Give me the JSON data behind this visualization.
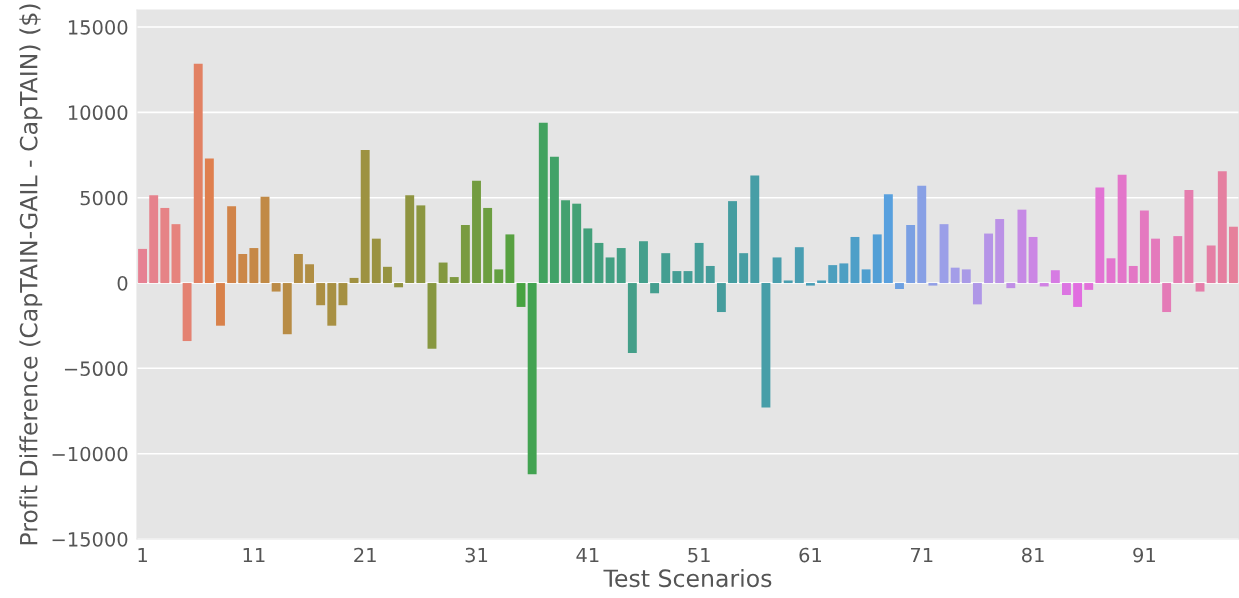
{
  "chart_data": {
    "type": "bar",
    "xlabel": "Test Scenarios",
    "ylabel": "Profit Difference (CapTAIN-GAIL - CapTAIN) ($)",
    "categories": [
      "1",
      null,
      null,
      null,
      null,
      null,
      null,
      null,
      null,
      null,
      "11",
      null,
      null,
      null,
      null,
      null,
      null,
      null,
      null,
      null,
      "21",
      null,
      null,
      null,
      null,
      null,
      null,
      null,
      null,
      null,
      "31",
      null,
      null,
      null,
      null,
      null,
      null,
      null,
      null,
      null,
      "41",
      null,
      null,
      null,
      null,
      null,
      null,
      null,
      null,
      null,
      "51",
      null,
      null,
      null,
      null,
      null,
      null,
      null,
      null,
      null,
      "61",
      null,
      null,
      null,
      null,
      null,
      null,
      null,
      null,
      null,
      "71",
      null,
      null,
      null,
      null,
      null,
      null,
      null,
      null,
      null,
      "81",
      null,
      null,
      null,
      null,
      null,
      null,
      null,
      null,
      null,
      "91",
      null,
      null,
      null,
      null,
      null,
      null,
      null,
      null
    ],
    "values": [
      2000,
      5150,
      4400,
      3450,
      -3400,
      12850,
      7300,
      -2500,
      4500,
      1700,
      2050,
      5050,
      -500,
      -3000,
      1700,
      1100,
      -1300,
      -2500,
      -1300,
      300,
      7800,
      2600,
      950,
      -250,
      5150,
      4550,
      -3850,
      1200,
      350,
      3400,
      6000,
      4400,
      800,
      2850,
      -1400,
      -11200,
      9400,
      7400,
      4850,
      4650,
      3200,
      2350,
      1500,
      2050,
      -4100,
      2450,
      -600,
      1750,
      700,
      700,
      2350,
      1000,
      -1700,
      4800,
      1750,
      6300,
      -7300,
      1500,
      150,
      2100,
      -150,
      150,
      1050,
      1150,
      2700,
      800,
      2850,
      5200,
      -350,
      3400,
      5700,
      -150,
      3450,
      900,
      800,
      -1250,
      2900,
      3750,
      -300,
      4300,
      2700,
      -200,
      750,
      -700,
      -1400,
      -400,
      5600,
      1450,
      6350,
      1000,
      4250,
      2600,
      -1700,
      2750,
      5450,
      -500,
      2200,
      6550,
      3300
    ],
    "colors": [
      "#e68193",
      "#e6828d",
      "#e68386",
      "#e6837d",
      "#e48272",
      "#e28163",
      "#df7f4e",
      "#d8814a",
      "#d18449",
      "#cb8748",
      "#c68847",
      "#c18a46",
      "#bc8b46",
      "#b88c45",
      "#b48d44",
      "#b08e44",
      "#ac8f43",
      "#a89043",
      "#a59042",
      "#a19141",
      "#9d9241",
      "#9a9240",
      "#969340",
      "#92933f",
      "#8f9440",
      "#8b9640",
      "#879740",
      "#839840",
      "#7e9940",
      "#799b40",
      "#739c40",
      "#6c9e41",
      "#639f41",
      "#58a141",
      "#47a341",
      "#42a351",
      "#42a25f",
      "#42a268",
      "#43a16f",
      "#43a175",
      "#43a07a",
      "#43a07e",
      "#43a082",
      "#44a086",
      "#449f89",
      "#449f8c",
      "#449f8f",
      "#449e91",
      "#449e94",
      "#449e96",
      "#459e99",
      "#459d9b",
      "#459d9d",
      "#459da0",
      "#469ea3",
      "#479ea6",
      "#479ea8",
      "#489eac",
      "#499eaf",
      "#499eb2",
      "#4a9eb6",
      "#4b9fba",
      "#4c9fbe",
      "#4d9fc3",
      "#4e9fc8",
      "#509fcf",
      "#529fd6",
      "#58a0de",
      "#6ca0e1",
      "#7ba0e3",
      "#88a0e5",
      "#929fe6",
      "#9b9fe8",
      "#a39de8",
      "#a99ae7",
      "#af97e7",
      "#b594e7",
      "#bb91e6",
      "#c08ee6",
      "#c68ae5",
      "#cb86e4",
      "#d181e4",
      "#d67be3",
      "#dc75e2",
      "#e16ee0",
      "#e271da",
      "#e273d4",
      "#e374cf",
      "#e376ca",
      "#e377c5",
      "#e479c0",
      "#e47abc",
      "#e47bb7",
      "#e57cb3",
      "#e57dae",
      "#e57eaa",
      "#e57fa5",
      "#e57fa0",
      "#e6809b"
    ],
    "ylim": [
      -15000,
      16000
    ],
    "yticks": [
      {
        "value": -15000,
        "label": "−15000"
      },
      {
        "value": -10000,
        "label": "−10000"
      },
      {
        "value": -5000,
        "label": "−5000"
      },
      0,
      5000,
      10000,
      15000
    ],
    "grid": "y"
  }
}
